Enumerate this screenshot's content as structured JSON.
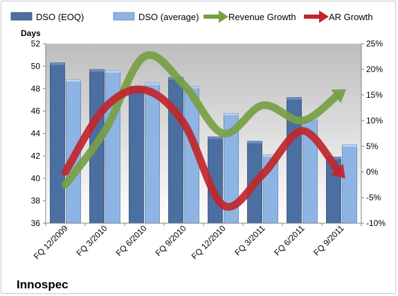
{
  "chart_data": {
    "type": "bar",
    "company": "Innospec",
    "ylabel": "Days",
    "categories": [
      "FQ 12/2009",
      "FQ 3/2010",
      "FQ 6/2010",
      "FQ 9/2010",
      "FQ 12/2010",
      "FQ 3/2011",
      "FQ 6/2011",
      "FQ 9/2011"
    ],
    "ylim": [
      36,
      52
    ],
    "y_ticks": [
      "36",
      "38",
      "40",
      "42",
      "44",
      "46",
      "48",
      "50",
      "52"
    ],
    "y2lim": [
      -10,
      25
    ],
    "y2_ticks": [
      "-10%",
      "-5%",
      "0%",
      "5%",
      "10%",
      "15%",
      "20%",
      "25%"
    ],
    "grid": false,
    "legend_position": "top",
    "series": [
      {
        "name": "DSO (EOQ)",
        "kind": "bar",
        "axis": "left",
        "color": "#4a6fa0",
        "values": [
          50.3,
          49.7,
          48.2,
          49.0,
          43.7,
          43.3,
          47.2,
          41.9
        ]
      },
      {
        "name": "DSO (average)",
        "kind": "bar",
        "axis": "left",
        "color": "#8db4e2",
        "values": [
          48.8,
          49.6,
          48.5,
          48.2,
          45.8,
          42.1,
          45.4,
          43.0
        ]
      },
      {
        "name": "Revenue Growth",
        "kind": "arrow-line",
        "axis": "right",
        "color": "#77a043",
        "values": [
          -2.5,
          8.0,
          22.5,
          17.0,
          7.5,
          13.0,
          10.0,
          15.5
        ]
      },
      {
        "name": "AR Growth",
        "kind": "arrow-line",
        "axis": "right",
        "color": "#c0262b",
        "values": [
          0.0,
          12.5,
          16.0,
          9.5,
          -6.5,
          -0.5,
          8.0,
          -0.5
        ]
      }
    ]
  }
}
